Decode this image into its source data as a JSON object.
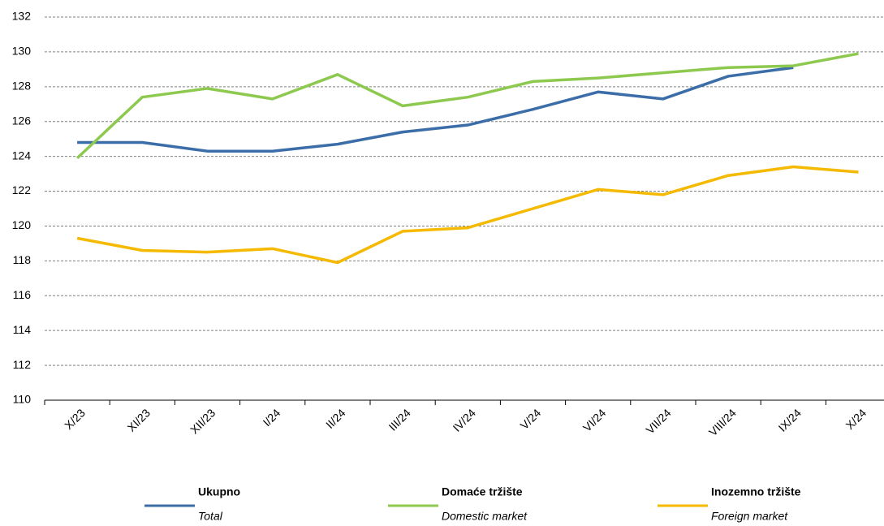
{
  "chart_data": {
    "type": "line",
    "categories": [
      "X/23",
      "XI/23",
      "XII/23",
      "I/24",
      "II/24",
      "III/24",
      "IV/24",
      "V/24",
      "VI/24",
      "VII/24",
      "VIII/24",
      "IX/24",
      "X/24"
    ],
    "series": [
      {
        "name": "Ukupno",
        "sublabel": "Total",
        "color": "#3b6ea8",
        "values": [
          124.8,
          124.8,
          124.3,
          124.3,
          124.7,
          125.4,
          125.8,
          126.7,
          127.7,
          127.3,
          128.6,
          129.1,
          null
        ]
      },
      {
        "name": "Domaće tržište",
        "sublabel": "Domestic market",
        "color": "#8dc94e",
        "values": [
          123.9,
          127.4,
          127.9,
          127.3,
          128.7,
          126.9,
          127.4,
          128.3,
          128.5,
          128.8,
          129.1,
          129.2,
          129.9
        ]
      },
      {
        "name": "Inozemno tržište",
        "sublabel": "Foreign market",
        "color": "#f5b900",
        "values": [
          119.3,
          118.6,
          118.5,
          118.7,
          117.9,
          119.7,
          119.9,
          121.0,
          122.1,
          121.8,
          122.9,
          123.4,
          123.1
        ]
      }
    ],
    "ylim": [
      110,
      132
    ],
    "yticks": [
      110,
      112,
      114,
      116,
      118,
      120,
      122,
      124,
      126,
      128,
      130,
      132
    ],
    "grid": true
  }
}
